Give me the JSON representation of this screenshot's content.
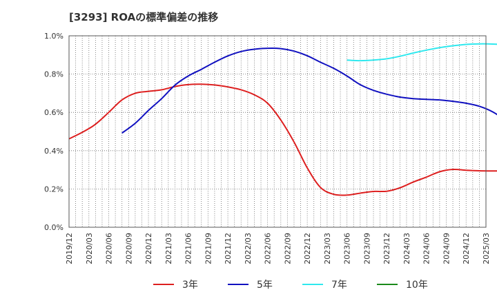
{
  "title": "[3293]  ROAの標準偏差の推移",
  "chart_data": {
    "type": "line",
    "title": "[3293]  ROAの標準偏差の推移",
    "xlabel": "",
    "ylabel": "",
    "ylim": [
      0,
      1.0
    ],
    "y_ticks": [
      "0.0%",
      "0.2%",
      "0.4%",
      "0.6%",
      "0.8%",
      "1.0%"
    ],
    "y_tick_values": [
      0,
      0.2,
      0.4,
      0.6,
      0.8,
      1.0
    ],
    "x_tick_labels": [
      "2019/12",
      "2020/03",
      "2020/06",
      "2020/09",
      "2020/12",
      "2021/03",
      "2021/06",
      "2021/09",
      "2021/12",
      "2022/03",
      "2022/06",
      "2022/09",
      "2022/12",
      "2023/03",
      "2023/06",
      "2023/09",
      "2023/12",
      "2024/03",
      "2024/06",
      "2024/09",
      "2024/12",
      "2025/03"
    ],
    "grid": true,
    "legend_position": "bottom",
    "series": [
      {
        "name": "3年",
        "color": "#dd1f1f",
        "start_index": 0,
        "values": [
          0.462,
          0.496,
          0.538,
          0.6,
          0.665,
          0.7,
          0.71,
          0.718,
          0.735,
          0.745,
          0.747,
          0.743,
          0.733,
          0.718,
          0.692,
          0.648,
          0.56,
          0.445,
          0.31,
          0.208,
          0.172,
          0.168,
          0.178,
          0.187,
          0.188,
          0.206,
          0.236,
          0.262,
          0.29,
          0.302,
          0.298,
          0.295,
          0.294,
          0.294
        ]
      },
      {
        "name": "5年",
        "color": "#1010c0",
        "start_index": 4,
        "values": [
          0.492,
          0.543,
          0.61,
          0.672,
          0.742,
          0.79,
          0.825,
          0.862,
          0.895,
          0.918,
          0.93,
          0.935,
          0.933,
          0.92,
          0.896,
          0.862,
          0.83,
          0.79,
          0.745,
          0.715,
          0.695,
          0.68,
          0.672,
          0.668,
          0.665,
          0.658,
          0.648,
          0.632,
          0.603,
          0.555,
          0.48,
          0.395,
          0.335,
          0.302
        ]
      },
      {
        "name": "7年",
        "color": "#2ee8ee",
        "start_index": 21,
        "values": [
          0.873,
          0.87,
          0.873,
          0.88,
          0.893,
          0.91,
          0.925,
          0.938,
          0.948,
          0.955,
          0.958,
          0.957,
          0.952,
          0.94,
          0.918,
          0.89,
          0.855,
          0.8,
          0.748
        ]
      },
      {
        "name": "10年",
        "color": "#1a8a1a",
        "start_index": 0,
        "values": []
      }
    ]
  },
  "legend": {
    "items": [
      {
        "label": "3年",
        "color": "#dd1f1f"
      },
      {
        "label": "5年",
        "color": "#1010c0"
      },
      {
        "label": "7年",
        "color": "#2ee8ee"
      },
      {
        "label": "10年",
        "color": "#1a8a1a"
      }
    ]
  }
}
